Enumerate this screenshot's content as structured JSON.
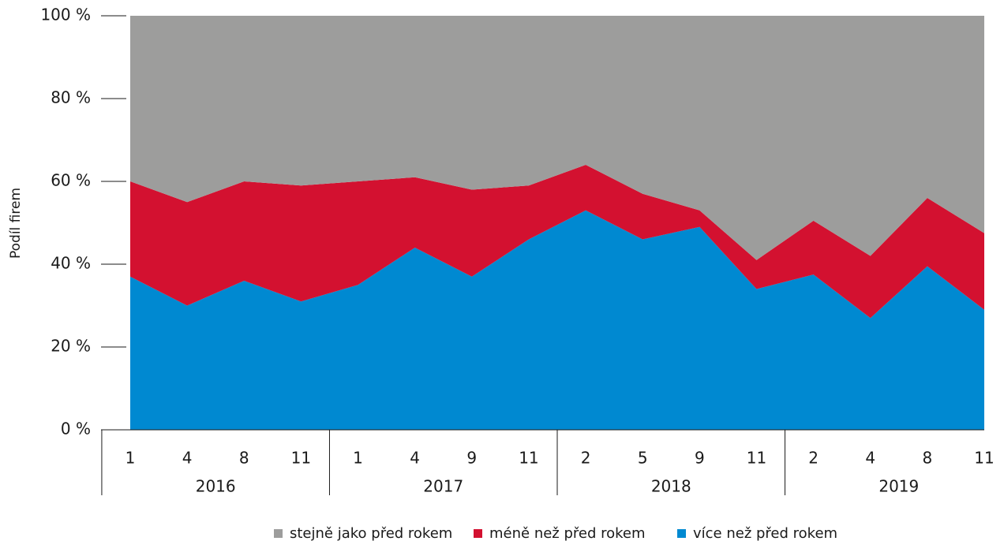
{
  "chart_data": {
    "type": "area",
    "ylabel": "Podíl firem",
    "categories": [
      "1",
      "4",
      "8",
      "11",
      "1",
      "4",
      "9",
      "11",
      "2",
      "5",
      "9",
      "11",
      "2",
      "4",
      "8",
      "11"
    ],
    "category_groups": [
      {
        "label": "2016",
        "count": 4
      },
      {
        "label": "2017",
        "count": 4
      },
      {
        "label": "2018",
        "count": 4
      },
      {
        "label": "2019",
        "count": 4
      }
    ],
    "stacked": true,
    "series": [
      {
        "name": "stejně jako před rokem",
        "color": "#9d9d9c",
        "values": [
          40,
          45,
          40,
          41,
          40,
          39,
          42,
          41,
          36,
          43,
          47,
          59,
          49.5,
          58,
          44,
          52.5
        ]
      },
      {
        "name": "méně než před rokem",
        "color": "#d31130",
        "values": [
          23,
          25,
          24,
          28,
          25,
          17,
          21,
          13,
          11,
          11,
          4,
          7,
          13,
          15,
          16.5,
          18.5
        ]
      },
      {
        "name": "více než před rokem",
        "color": "#0089d1",
        "values": [
          37,
          30,
          36,
          31,
          35,
          44,
          37,
          46,
          53,
          46,
          49,
          34,
          37.5,
          27,
          39.5,
          29
        ]
      }
    ],
    "ylim": [
      0,
      100
    ],
    "yticks": [
      {
        "value": 0,
        "label": "0 %"
      },
      {
        "value": 20,
        "label": "20 %"
      },
      {
        "value": 40,
        "label": "40 %"
      },
      {
        "value": 60,
        "label": "60 %"
      },
      {
        "value": 80,
        "label": "80 %"
      },
      {
        "value": 100,
        "label": "100 %"
      }
    ]
  }
}
